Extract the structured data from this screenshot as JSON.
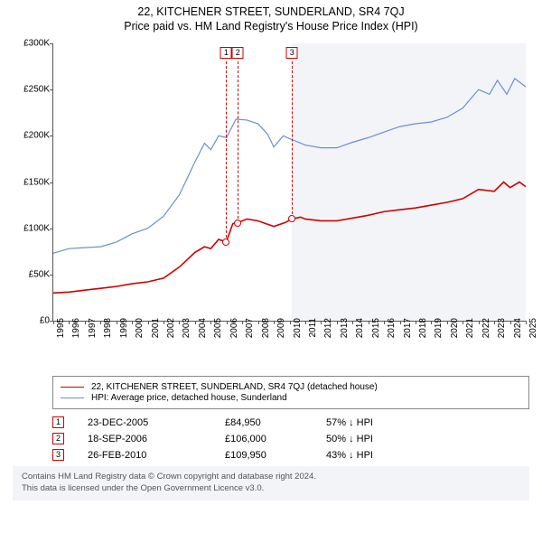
{
  "title": "22, KITCHENER STREET, SUNDERLAND, SR4 7QJ",
  "subtitle": "Price paid vs. HM Land Registry's House Price Index (HPI)",
  "chart": {
    "type": "line",
    "background_color": "#ffffff",
    "highlight_fill_color": "#f2f4f8",
    "axis_color": "#555555",
    "ylabel_prefix": "£",
    "ylabel_suffix": "K",
    "ylim": [
      0,
      300
    ],
    "ytick_step": 50,
    "xlim": [
      1995,
      2025
    ],
    "xtick_step": 1,
    "series": [
      {
        "name": "property",
        "label": "22, KITCHENER STREET, SUNDERLAND, SR4 7QJ (detached house)",
        "color": "#d00000",
        "line_width": 1.6,
        "points": [
          [
            1995,
            30
          ],
          [
            1996,
            31
          ],
          [
            1997,
            33
          ],
          [
            1998,
            35
          ],
          [
            1999,
            37
          ],
          [
            2000,
            40
          ],
          [
            2001,
            42
          ],
          [
            2002,
            46
          ],
          [
            2003,
            58
          ],
          [
            2004,
            74
          ],
          [
            2004.6,
            80
          ],
          [
            2005,
            78
          ],
          [
            2005.5,
            88
          ],
          [
            2005.98,
            85
          ],
          [
            2006.4,
            105
          ],
          [
            2006.72,
            106
          ],
          [
            2007.3,
            110
          ],
          [
            2008,
            108
          ],
          [
            2009,
            102
          ],
          [
            2009.7,
            106
          ],
          [
            2010.16,
            110
          ],
          [
            2010.7,
            112
          ],
          [
            2011,
            110
          ],
          [
            2012,
            108
          ],
          [
            2013,
            108
          ],
          [
            2014,
            111
          ],
          [
            2015,
            114
          ],
          [
            2016,
            118
          ],
          [
            2017,
            120
          ],
          [
            2018,
            122
          ],
          [
            2019,
            125
          ],
          [
            2020,
            128
          ],
          [
            2021,
            132
          ],
          [
            2022,
            142
          ],
          [
            2023,
            140
          ],
          [
            2023.6,
            150
          ],
          [
            2024,
            144
          ],
          [
            2024.6,
            150
          ],
          [
            2025,
            145
          ]
        ]
      },
      {
        "name": "hpi",
        "label": "HPI: Average price, detached house, Sunderland",
        "color": "#6a8fd4",
        "line_width": 1.2,
        "points": [
          [
            1995,
            73
          ],
          [
            1996,
            78
          ],
          [
            1997,
            79
          ],
          [
            1998,
            80
          ],
          [
            1999,
            85
          ],
          [
            2000,
            94
          ],
          [
            2001,
            100
          ],
          [
            2002,
            113
          ],
          [
            2003,
            136
          ],
          [
            2004,
            172
          ],
          [
            2004.6,
            192
          ],
          [
            2005,
            185
          ],
          [
            2005.5,
            200
          ],
          [
            2006,
            198
          ],
          [
            2006.6,
            218
          ],
          [
            2007.3,
            217
          ],
          [
            2008,
            213
          ],
          [
            2008.6,
            202
          ],
          [
            2009,
            188
          ],
          [
            2009.6,
            200
          ],
          [
            2010,
            197
          ],
          [
            2011,
            190
          ],
          [
            2012,
            187
          ],
          [
            2013,
            187
          ],
          [
            2014,
            193
          ],
          [
            2015,
            198
          ],
          [
            2016,
            204
          ],
          [
            2017,
            210
          ],
          [
            2018,
            213
          ],
          [
            2019,
            215
          ],
          [
            2020,
            220
          ],
          [
            2021,
            230
          ],
          [
            2022,
            250
          ],
          [
            2022.7,
            245
          ],
          [
            2023.2,
            260
          ],
          [
            2023.8,
            245
          ],
          [
            2024.3,
            262
          ],
          [
            2025,
            253
          ]
        ]
      }
    ],
    "highlight_from": 2010.16,
    "sale_markers": [
      {
        "n": "1",
        "x": 2005.98,
        "y": 85
      },
      {
        "n": "2",
        "x": 2006.72,
        "y": 106
      },
      {
        "n": "3",
        "x": 2010.16,
        "y": 110
      }
    ]
  },
  "legend": {
    "items": [
      {
        "color": "#d00000",
        "width": 1.6,
        "label_ref": "chart.series.0.label"
      },
      {
        "color": "#6a8fd4",
        "width": 1.2,
        "label_ref": "chart.series.1.label"
      }
    ]
  },
  "sales": [
    {
      "n": "1",
      "date": "23-DEC-2005",
      "price": "£84,950",
      "hpi": "57% ↓ HPI"
    },
    {
      "n": "2",
      "date": "18-SEP-2006",
      "price": "£106,000",
      "hpi": "50% ↓ HPI"
    },
    {
      "n": "3",
      "date": "26-FEB-2010",
      "price": "£109,950",
      "hpi": "43% ↓ HPI"
    }
  ],
  "footer": {
    "line1": "Contains HM Land Registry data © Crown copyright and database right 2024.",
    "line2": "This data is licensed under the Open Government Licence v3.0."
  }
}
